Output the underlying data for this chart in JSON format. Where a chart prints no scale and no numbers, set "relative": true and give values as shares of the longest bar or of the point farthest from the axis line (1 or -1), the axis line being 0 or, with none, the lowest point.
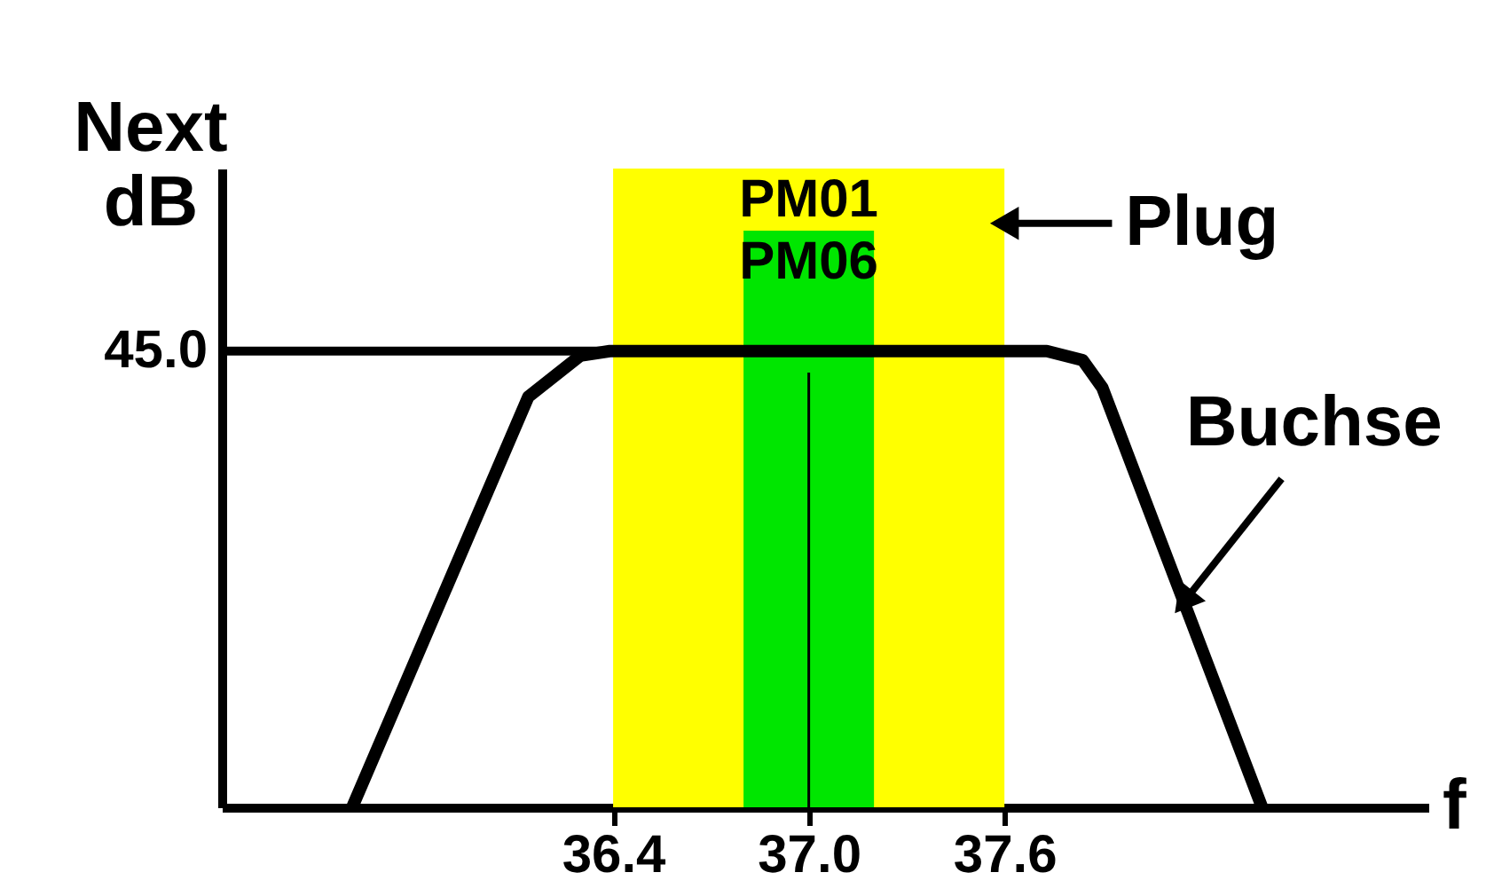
{
  "chart_data": {
    "type": "line",
    "relative": true,
    "xlabel": "f",
    "ylabel": "Next dB",
    "x": [
      35.6,
      36.14,
      36.3,
      36.39,
      37.73,
      37.84,
      37.9,
      38.39
    ],
    "series": [
      {
        "color": "#000000",
        "values": [
          0,
          0.9,
          0.99,
          1,
          1,
          0.98,
          0.92,
          0
        ]
      }
    ],
    "xlim": [
      35.2,
      38.9
    ],
    "xticks": [
      36.4,
      {
        "value": 37.0,
        "label": "37.0"
      },
      37.6
    ],
    "tick_labels": "x",
    "grid": false,
    "marker": "none",
    "line_style": "solid",
    "bands": [
      {
        "axis": "x",
        "from": 36.4,
        "to": 37.6,
        "label": "PM01",
        "color": "#ffff00"
      },
      {
        "axis": "x",
        "from": 36.8,
        "to": 37.2,
        "label": "PM06",
        "color": "#00e600"
      }
    ],
    "ref_lines": [
      {
        "axis": "x",
        "value": 37.0,
        "color": "#000000"
      },
      {
        "axis": "y",
        "value": 1,
        "color": "#000000"
      }
    ],
    "annotations": [
      "45.0",
      {
        "text": "Plug",
        "x": 37.6,
        "y": 1.28
      },
      {
        "text": "Buchse",
        "x": 38.15,
        "y": 0.45
      }
    ]
  }
}
